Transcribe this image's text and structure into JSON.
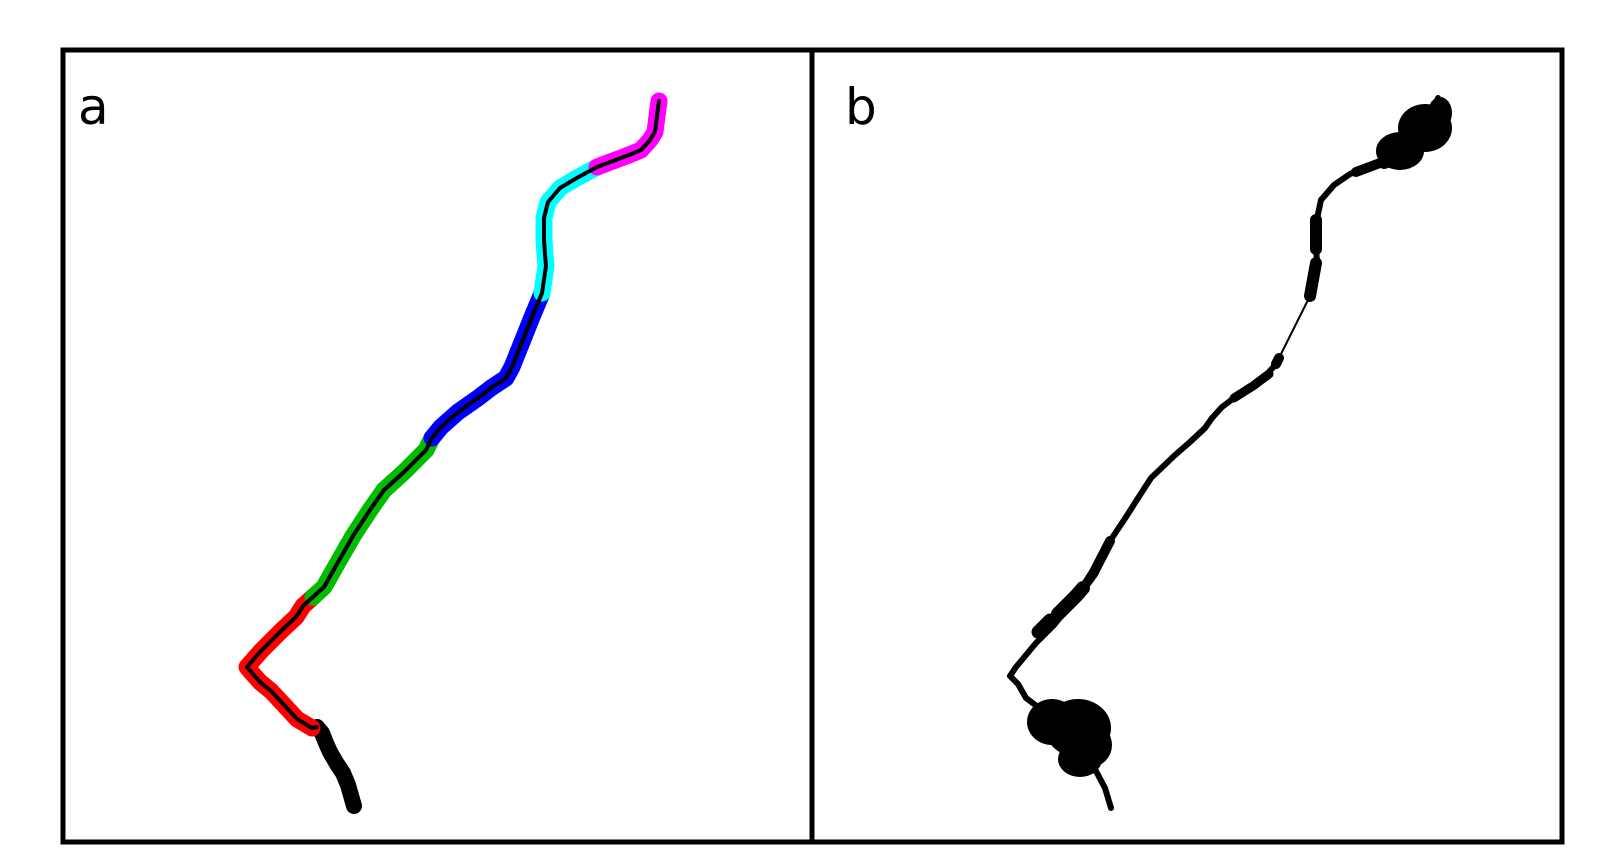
{
  "figure": {
    "panels": [
      {
        "label": "a",
        "segment_colors": [
          "#000000",
          "#ff0000",
          "#00bb00",
          "#0000ff",
          "#00ffff",
          "#ff00ff"
        ]
      },
      {
        "label": "b",
        "centerline_color": "#000000"
      }
    ]
  }
}
